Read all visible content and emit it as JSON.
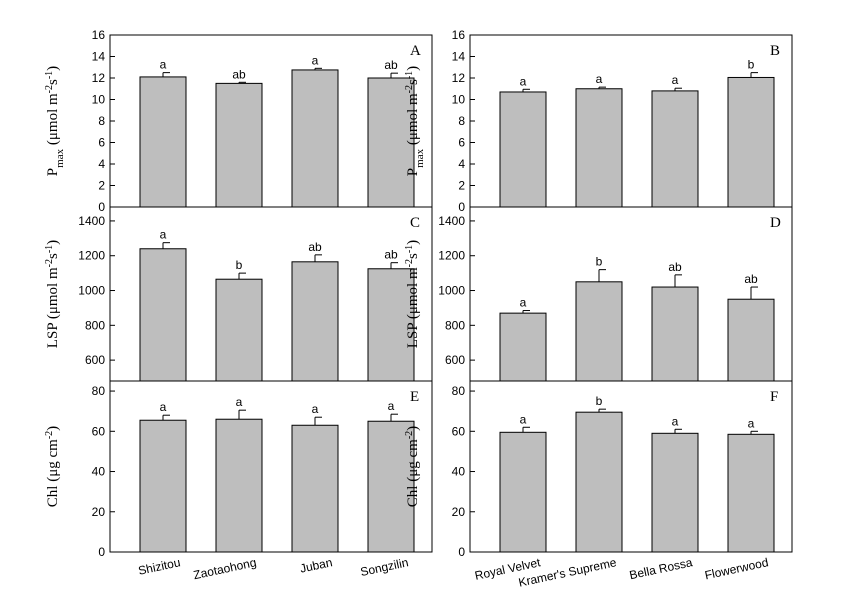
{
  "chart_data": [
    {
      "type": "bar",
      "panel": "A",
      "ylabel_main": "P",
      "ylabel_sub": "max",
      "ylabel_unit": " (μmol m",
      "ylabel_exp1": "-2",
      "ylabel_mid": "s",
      "ylabel_exp2": "-1",
      "ylabel_close": ")",
      "ylim": [
        0,
        16
      ],
      "yticks": [
        0,
        2,
        4,
        6,
        8,
        10,
        12,
        14,
        16
      ],
      "categories": [
        "Shizitou",
        "Zaotaohong",
        "Juban",
        "Songzilin"
      ],
      "values": [
        12.1,
        11.5,
        12.75,
        12.0
      ],
      "errors": [
        0.4,
        0.1,
        0.15,
        0.45
      ],
      "letters": [
        "a",
        "ab",
        "a",
        "ab"
      ]
    },
    {
      "type": "bar",
      "panel": "B",
      "ylabel_main": "P",
      "ylabel_sub": "max",
      "ylabel_unit": " (μmol m",
      "ylabel_exp1": "-2",
      "ylabel_mid": "s",
      "ylabel_exp2": "-1",
      "ylabel_close": ")",
      "ylim": [
        0,
        16
      ],
      "yticks": [
        0,
        2,
        4,
        6,
        8,
        10,
        12,
        14,
        16
      ],
      "categories": [
        "Royal Velvet",
        "Kramer's Supreme",
        "Bella Rossa",
        "Flowerwood"
      ],
      "values": [
        10.7,
        11.0,
        10.8,
        12.05
      ],
      "errors": [
        0.25,
        0.15,
        0.25,
        0.45
      ],
      "letters": [
        "a",
        "a",
        "a",
        "b"
      ]
    },
    {
      "type": "bar",
      "panel": "C",
      "ylabel_main": "LSP (μmol m",
      "ylabel_exp1": "-2",
      "ylabel_mid": "s",
      "ylabel_exp2": "-1",
      "ylabel_close": ")",
      "ylim": [
        480,
        1480
      ],
      "yticks": [
        600,
        800,
        1000,
        1200,
        1400
      ],
      "categories": [
        "Shizitou",
        "Zaotaohong",
        "Juban",
        "Songzilin"
      ],
      "values": [
        1240,
        1065,
        1165,
        1125
      ],
      "errors": [
        35,
        35,
        40,
        35
      ],
      "letters": [
        "a",
        "b",
        "ab",
        "ab"
      ]
    },
    {
      "type": "bar",
      "panel": "D",
      "ylabel_main": "LSP (μmol m",
      "ylabel_exp1": "-2",
      "ylabel_mid": "s",
      "ylabel_exp2": "-1",
      "ylabel_close": ")",
      "ylim": [
        480,
        1480
      ],
      "yticks": [
        600,
        800,
        1000,
        1200,
        1400
      ],
      "categories": [
        "Royal Velvet",
        "Kramer's Supreme",
        "Bella Rossa",
        "Flowerwood"
      ],
      "values": [
        870,
        1050,
        1020,
        950
      ],
      "errors": [
        15,
        70,
        70,
        70
      ],
      "letters": [
        "a",
        "b",
        "ab",
        "ab"
      ]
    },
    {
      "type": "bar",
      "panel": "E",
      "ylabel_main": "Chl (μg cm",
      "ylabel_exp1": "-2",
      "ylabel_close": ")",
      "ylim": [
        0,
        85
      ],
      "yticks": [
        0,
        20,
        40,
        60,
        80
      ],
      "categories": [
        "Shizitou",
        "Zaotaohong",
        "Juban",
        "Songzilin"
      ],
      "values": [
        65.5,
        66.0,
        63.0,
        65.0
      ],
      "errors": [
        2.5,
        4.5,
        4.0,
        3.5
      ],
      "letters": [
        "a",
        "a",
        "a",
        "a"
      ]
    },
    {
      "type": "bar",
      "panel": "F",
      "ylabel_main": "Chl (μg cm",
      "ylabel_exp1": "-2",
      "ylabel_close": ")",
      "ylim": [
        0,
        85
      ],
      "yticks": [
        0,
        20,
        40,
        60,
        80
      ],
      "categories": [
        "Royal Velvet",
        "Kramer's Supreme",
        "Bella Rossa",
        "Flowerwood"
      ],
      "values": [
        59.5,
        69.5,
        59.0,
        58.5
      ],
      "errors": [
        2.5,
        1.5,
        2.0,
        1.5
      ],
      "letters": [
        "a",
        "b",
        "a",
        "a"
      ]
    }
  ],
  "colors": {
    "bar_fill": "#bebebe",
    "stroke": "#000000"
  }
}
